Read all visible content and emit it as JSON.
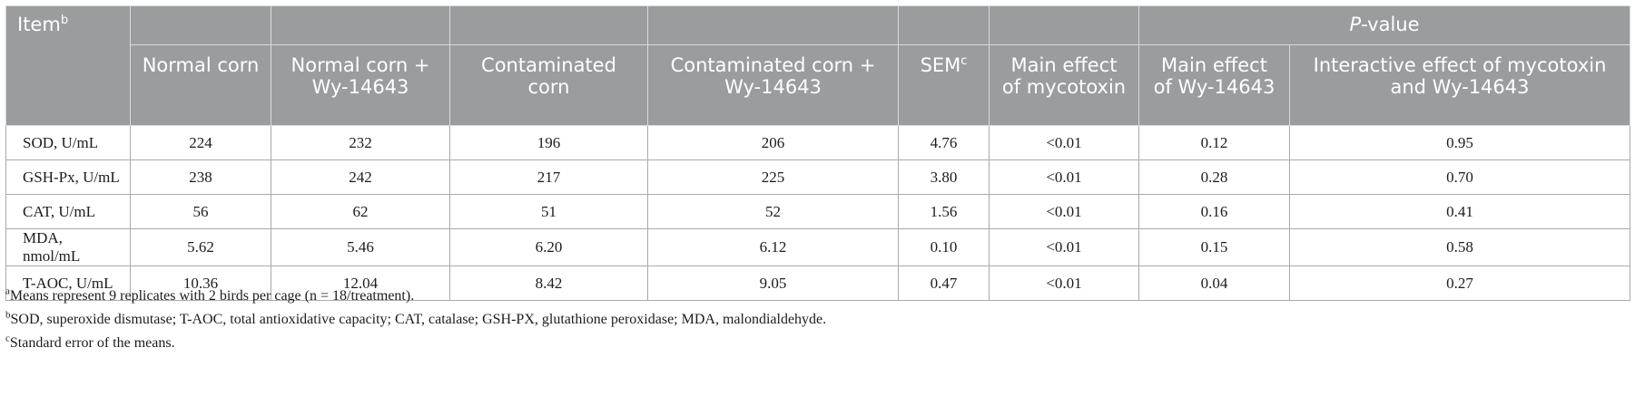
{
  "header": {
    "item_label": "Item",
    "item_sup": "b",
    "pvalue_italic": "P",
    "pvalue_rest": "-value",
    "columns": [
      "Normal corn",
      "Normal corn + Wy-14643",
      "Contaminated corn",
      "Contaminated corn + Wy-14643",
      "SEM",
      "Main effect of mycotoxin",
      "Main effect of Wy-14643",
      "Interactive effect of mycotoxin and Wy-14643"
    ],
    "sem_sup": "c"
  },
  "rows": [
    [
      "SOD, U/mL",
      "224",
      "232",
      "196",
      "206",
      "4.76",
      "<0.01",
      "0.12",
      "0.95"
    ],
    [
      "GSH-Px, U/mL",
      "238",
      "242",
      "217",
      "225",
      "3.80",
      "<0.01",
      "0.28",
      "0.70"
    ],
    [
      "CAT, U/mL",
      "56",
      "62",
      "51",
      "52",
      "1.56",
      "<0.01",
      "0.16",
      "0.41"
    ],
    [
      "MDA, nmol/mL",
      "5.62",
      "5.46",
      "6.20",
      "6.12",
      "0.10",
      "<0.01",
      "0.15",
      "0.58"
    ],
    [
      "T-AOC, U/mL",
      "10.36",
      "12.04",
      "8.42",
      "9.05",
      "0.47",
      "<0.01",
      "0.04",
      "0.27"
    ]
  ],
  "footnotes": [
    {
      "mark": "a",
      "text": "Means represent 9 replicates with 2 birds per cage (n = 18/treatment)."
    },
    {
      "mark": "b",
      "text": "SOD, superoxide dismutase; T-AOC, total antioxidative capacity; CAT, catalase; GSH-PX, glutathione peroxidase; MDA, malondialdehyde."
    },
    {
      "mark": "c",
      "text": "Standard error of the means."
    }
  ]
}
